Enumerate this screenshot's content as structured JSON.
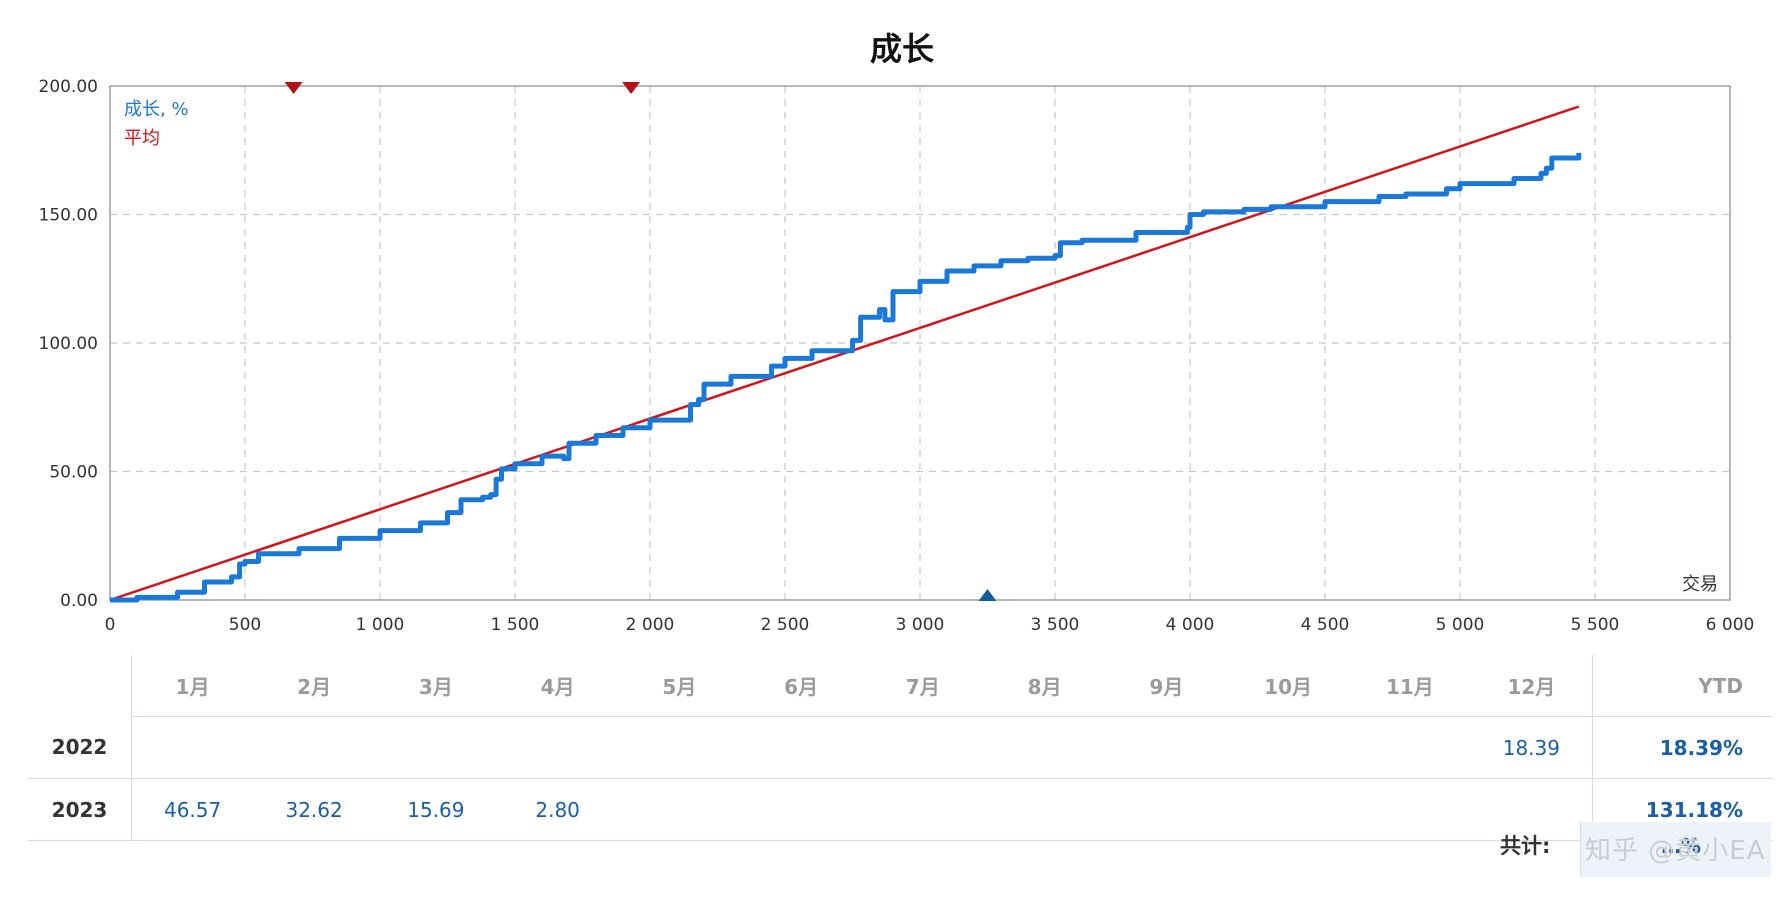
{
  "chart_data": {
    "type": "line",
    "title": "成长",
    "xlabel": "交易",
    "ylabel": "",
    "xlim": [
      0,
      6000
    ],
    "ylim": [
      0,
      200
    ],
    "x_ticks": [
      "0",
      "500",
      "1 000",
      "1 500",
      "2 000",
      "2 500",
      "3 000",
      "3 500",
      "4 000",
      "4 500",
      "5 000",
      "5 500",
      "6 000"
    ],
    "y_ticks": [
      "0.00",
      "50.00",
      "100.00",
      "150.00",
      "200.00"
    ],
    "grid": true,
    "legend": "top-left",
    "series": [
      {
        "name": "成长, %",
        "color": "#1a78d8",
        "x": [
          0,
          100,
          250,
          350,
          450,
          480,
          500,
          550,
          700,
          850,
          1000,
          1150,
          1250,
          1300,
          1380,
          1410,
          1430,
          1450,
          1500,
          1600,
          1680,
          1700,
          1800,
          1900,
          2000,
          2150,
          2180,
          2200,
          2300,
          2450,
          2500,
          2600,
          2750,
          2780,
          2850,
          2870,
          2900,
          3000,
          3100,
          3200,
          3300,
          3400,
          3500,
          3520,
          3600,
          3800,
          3990,
          4000,
          4050,
          4200,
          4300,
          4500,
          4700,
          4800,
          4950,
          5000,
          5200,
          5300,
          5320,
          5340,
          5440
        ],
        "y": [
          0,
          1,
          3,
          7,
          9,
          14,
          15,
          18,
          20,
          24,
          27,
          30,
          34,
          39,
          40,
          41,
          47,
          51,
          53,
          56,
          55,
          61,
          64,
          67,
          70,
          76,
          78,
          84,
          87,
          91,
          94,
          97,
          101,
          110,
          113,
          109,
          120,
          124,
          128,
          130,
          132,
          133,
          134,
          139,
          140,
          143,
          145,
          150,
          151,
          152,
          153,
          155,
          157,
          158,
          160,
          162,
          164,
          166,
          168,
          172,
          174
        ]
      },
      {
        "name": "平均",
        "color": "#d4141a",
        "x": [
          0,
          5440
        ],
        "y": [
          0,
          192
        ]
      }
    ],
    "markers": [
      {
        "x": 680,
        "kind": "max",
        "color": "#b01218"
      },
      {
        "x": 1930,
        "kind": "max",
        "color": "#b01218"
      },
      {
        "x": 3250,
        "kind": "min",
        "color": "#135e9c"
      }
    ]
  },
  "table": {
    "months": [
      "1月",
      "2月",
      "3月",
      "4月",
      "5月",
      "6月",
      "7月",
      "8月",
      "9月",
      "10月",
      "11月",
      "12月"
    ],
    "ytd_label": "YTD",
    "rows": [
      {
        "year": "2022",
        "values": [
          "",
          "",
          "",
          "",
          "",
          "",
          "",
          "",
          "",
          "",
          "",
          "18.39"
        ],
        "ytd": "18.39%"
      },
      {
        "year": "2023",
        "values": [
          "46.57",
          "32.62",
          "15.69",
          "2.80",
          "",
          "",
          "",
          "",
          "",
          "",
          "",
          ""
        ],
        "ytd": "131.18%"
      }
    ],
    "total_label": "共计:",
    "total_value": "…%",
    "watermark": "知乎 @黄小EA"
  }
}
